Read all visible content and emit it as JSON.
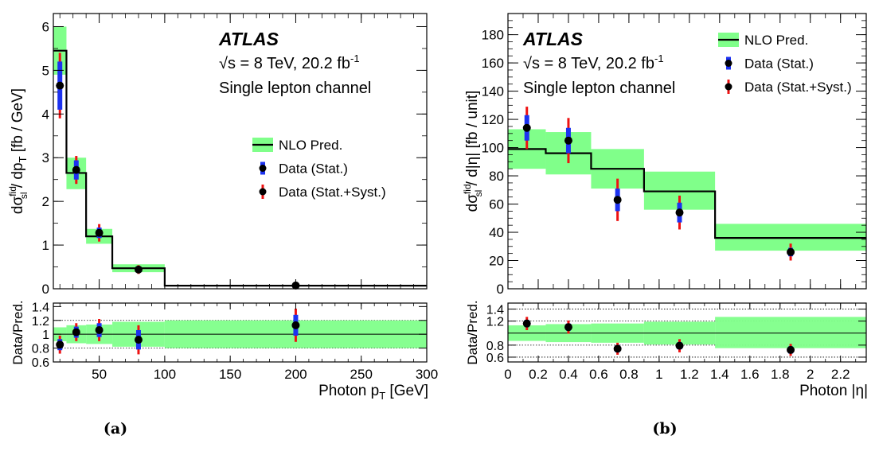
{
  "chart_data": [
    {
      "type": "line",
      "subtype": "step-histogram-with-errorbars",
      "panel_label": "(a)",
      "experiment": "ATLAS",
      "energy_text": "√s = 8 TeV, 20.2 fb",
      "energy_sup": "-1",
      "channel_text": "Single lepton channel",
      "xlabel": "Photon p",
      "xlabel_sub": "T",
      "xlabel_unit": " [GeV]",
      "ylabel": "dσ",
      "ylabel_sup": "fid",
      "ylabel_sub": "sl",
      "ylabel_rest": " / dp",
      "ylabel_rest_sub": "T",
      "ylabel_unit": " [fb / GeV]",
      "ratio_ylabel": "Data/Pred.",
      "xlim": [
        15,
        300
      ],
      "ylim": [
        0,
        6.3
      ],
      "ratio_ylim": [
        0.6,
        1.45
      ],
      "x_ticks": [
        50,
        100,
        150,
        200,
        250,
        300
      ],
      "y_ticks": [
        0,
        1,
        2,
        3,
        4,
        5,
        6
      ],
      "ratio_ticks": [
        0.6,
        0.8,
        1,
        1.2,
        1.4
      ],
      "ratio_tick_labels": [
        "0.6",
        "0.8",
        "1",
        "1.2",
        "1.4"
      ],
      "ratio_dotted_lines": [
        0.8,
        1.2
      ],
      "legend": [
        "NLO Pred.",
        "Data (Stat.)",
        "Data (Stat.+Syst.)"
      ],
      "legend_position": "right-middle",
      "bins": [
        {
          "low": 15,
          "high": 25,
          "pred": 5.45,
          "band_low": 4.9,
          "band_high": 6.0,
          "data_x": 20,
          "data": 4.65,
          "stat": 0.55,
          "tot": 0.75,
          "ratio": 0.85,
          "ratio_stat": 0.08,
          "ratio_tot": 0.13,
          "rband_low": 0.9,
          "rband_high": 1.1
        },
        {
          "low": 25,
          "high": 40,
          "pred": 2.65,
          "band_low": 2.28,
          "band_high": 3.0,
          "data_x": 32.5,
          "data": 2.72,
          "stat": 0.22,
          "tot": 0.32,
          "ratio": 1.03,
          "ratio_stat": 0.08,
          "ratio_tot": 0.13,
          "rband_low": 0.87,
          "rband_high": 1.13
        },
        {
          "low": 40,
          "high": 60,
          "pred": 1.2,
          "band_low": 1.03,
          "band_high": 1.37,
          "data_x": 50,
          "data": 1.28,
          "stat": 0.12,
          "tot": 0.2,
          "ratio": 1.06,
          "ratio_stat": 0.1,
          "ratio_tot": 0.16,
          "rband_low": 0.86,
          "rband_high": 1.14
        },
        {
          "low": 60,
          "high": 100,
          "pred": 0.47,
          "band_low": 0.38,
          "band_high": 0.56,
          "data_x": 80,
          "data": 0.44,
          "stat": 0.06,
          "tot": 0.1,
          "ratio": 0.92,
          "ratio_stat": 0.14,
          "ratio_tot": 0.21,
          "rband_low": 0.82,
          "rband_high": 1.18
        },
        {
          "low": 100,
          "high": 300,
          "pred": 0.07,
          "band_low": 0.06,
          "band_high": 0.08,
          "data_x": 200,
          "data": 0.075,
          "stat": 0.01,
          "tot": 0.015,
          "ratio": 1.13,
          "ratio_stat": 0.15,
          "ratio_tot": 0.24,
          "rband_low": 0.8,
          "rband_high": 1.2
        }
      ]
    },
    {
      "type": "line",
      "subtype": "step-histogram-with-errorbars",
      "panel_label": "(b)",
      "experiment": "ATLAS",
      "energy_text": "√s = 8 TeV, 20.2 fb",
      "energy_sup": "-1",
      "channel_text": "Single lepton channel",
      "xlabel": "Photon |η|",
      "xlabel_sub": "",
      "xlabel_unit": "",
      "ylabel": "dσ",
      "ylabel_sup": "fid",
      "ylabel_sub": "sl",
      "ylabel_rest": " / d|η|",
      "ylabel_rest_sub": "",
      "ylabel_unit": " [fb / unit]",
      "ratio_ylabel": "Data/Pred.",
      "xlim": [
        0,
        2.37
      ],
      "ylim": [
        0,
        195
      ],
      "ratio_ylim": [
        0.52,
        1.5
      ],
      "x_ticks": [
        0,
        0.2,
        0.4,
        0.6,
        0.8,
        1,
        1.2,
        1.4,
        1.6,
        1.8,
        2,
        2.2
      ],
      "y_ticks": [
        0,
        20,
        40,
        60,
        80,
        100,
        120,
        140,
        160,
        180
      ],
      "ratio_ticks": [
        0.6,
        0.8,
        1.2,
        1.4
      ],
      "ratio_tick_labels": [
        "0.6",
        "0.8",
        "1.2",
        "1.4"
      ],
      "ratio_dotted_lines": [
        0.6,
        0.8,
        1.2,
        1.4
      ],
      "legend": [
        "NLO Pred.",
        "Data (Stat.)",
        "Data (Stat.+Syst.)"
      ],
      "legend_position": "top-right",
      "bins": [
        {
          "low": 0,
          "high": 0.25,
          "pred": 99,
          "band_low": 85,
          "band_high": 113,
          "data_x": 0.125,
          "data": 114,
          "stat": 9,
          "tot": 15,
          "ratio": 1.16,
          "ratio_stat": 0.06,
          "ratio_tot": 0.11,
          "rband_low": 0.87,
          "rband_high": 1.13
        },
        {
          "low": 0.25,
          "high": 0.55,
          "pred": 96,
          "band_low": 81,
          "band_high": 111,
          "data_x": 0.4,
          "data": 105,
          "stat": 9,
          "tot": 16,
          "ratio": 1.1,
          "ratio_stat": 0.06,
          "ratio_tot": 0.11,
          "rband_low": 0.85,
          "rband_high": 1.15
        },
        {
          "low": 0.55,
          "high": 0.9,
          "pred": 85,
          "band_low": 71,
          "band_high": 99,
          "data_x": 0.725,
          "data": 63,
          "stat": 8,
          "tot": 15,
          "ratio": 0.74,
          "ratio_stat": 0.06,
          "ratio_tot": 0.1,
          "rband_low": 0.84,
          "rband_high": 1.16
        },
        {
          "low": 0.9,
          "high": 1.37,
          "pred": 69,
          "band_low": 56,
          "band_high": 83,
          "data_x": 1.135,
          "data": 54,
          "stat": 7,
          "tot": 12,
          "ratio": 0.79,
          "ratio_stat": 0.06,
          "ratio_tot": 0.11,
          "rband_low": 0.81,
          "rband_high": 1.19
        },
        {
          "low": 1.37,
          "high": 2.37,
          "pred": 36,
          "band_low": 27,
          "band_high": 46,
          "data_x": 1.87,
          "data": 26,
          "stat": 3,
          "tot": 6,
          "ratio": 0.72,
          "ratio_stat": 0.06,
          "ratio_tot": 0.1,
          "rband_low": 0.75,
          "rband_high": 1.27
        }
      ]
    }
  ]
}
